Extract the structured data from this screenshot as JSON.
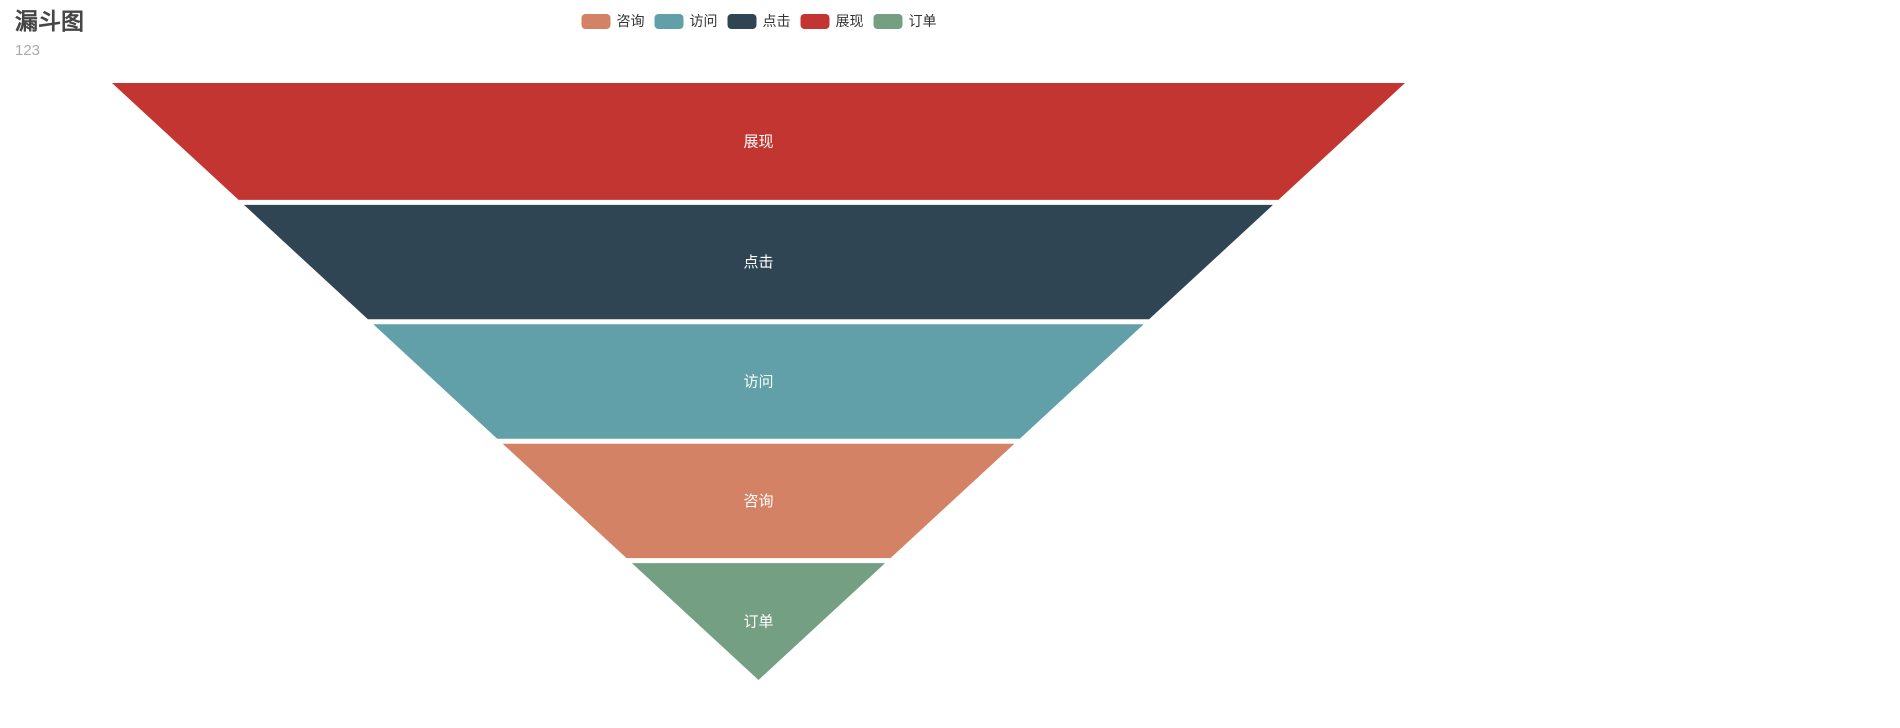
{
  "title": {
    "text": "漏斗图",
    "subtext": "123"
  },
  "legend": {
    "items": [
      {
        "id": "consult",
        "label": "咨询",
        "color": "#d48265"
      },
      {
        "id": "visit",
        "label": "访问",
        "color": "#61a0a8"
      },
      {
        "id": "click",
        "label": "点击",
        "color": "#2f4554"
      },
      {
        "id": "impression",
        "label": "展现",
        "color": "#c23531"
      },
      {
        "id": "order",
        "label": "订单",
        "color": "#749f83"
      }
    ]
  },
  "chart_data": {
    "type": "funnel",
    "title": "漏斗图",
    "subtitle": "123",
    "sort": "descending",
    "orientation": "inverted-pyramid",
    "label_position": "inside",
    "label_color": "#ffffff",
    "legend_position": "top-center",
    "min": 0,
    "max": 100,
    "items": [
      {
        "id": "impression",
        "name": "展现",
        "value": 100,
        "color": "#c23531"
      },
      {
        "id": "click",
        "name": "点击",
        "value": 80,
        "color": "#2f4554"
      },
      {
        "id": "visit",
        "name": "访问",
        "value": 60,
        "color": "#61a0a8"
      },
      {
        "id": "consult",
        "name": "咨询",
        "value": 40,
        "color": "#d48265"
      },
      {
        "id": "order",
        "name": "订单",
        "value": 20,
        "color": "#749f83"
      }
    ]
  }
}
